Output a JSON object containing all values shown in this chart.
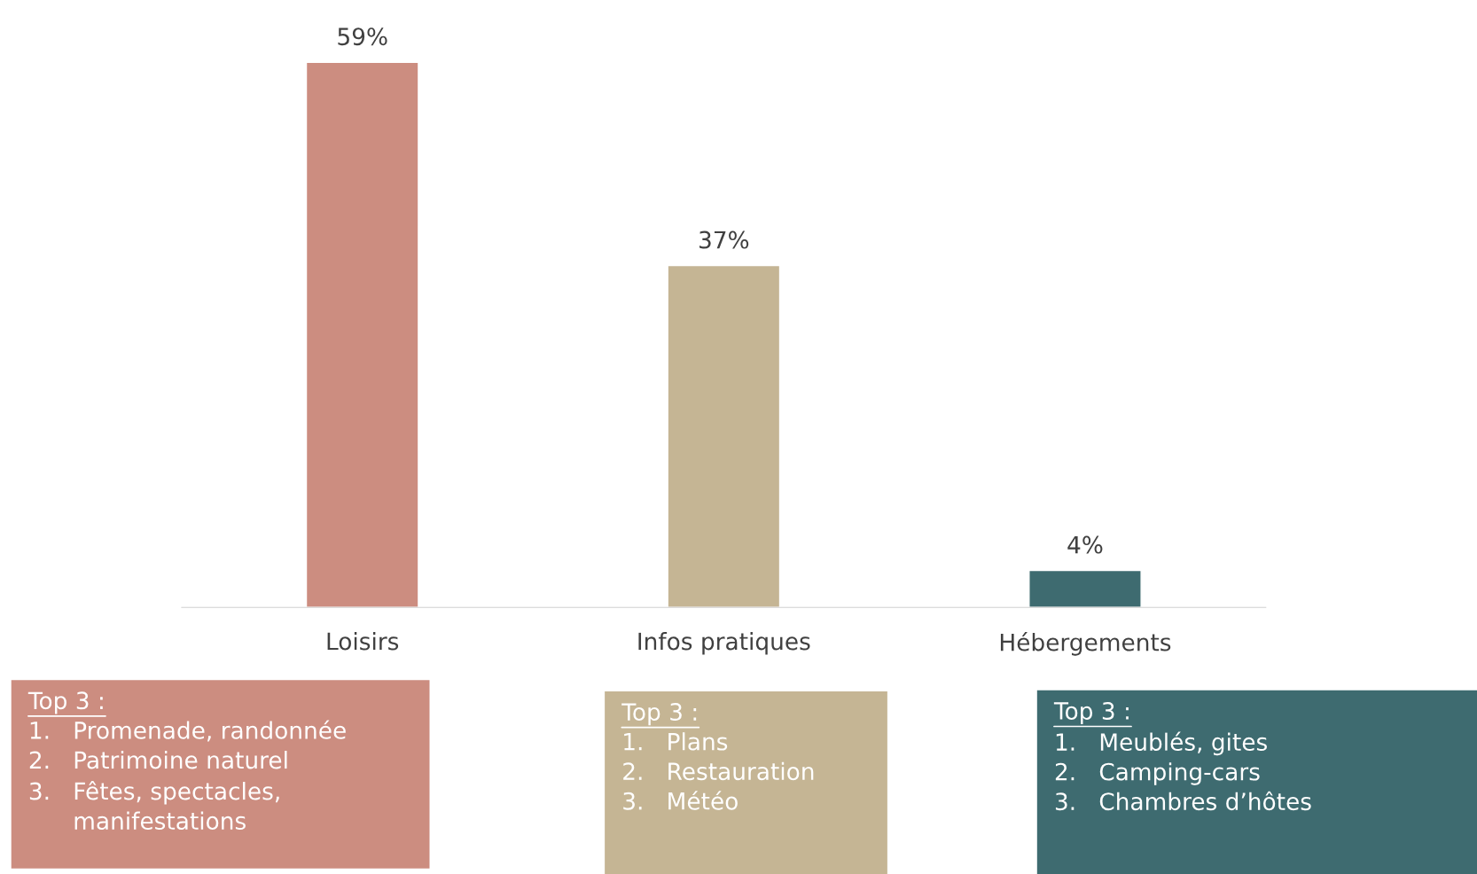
{
  "chart_data": {
    "type": "bar",
    "categories": [
      "Loisirs",
      "Infos pratiques",
      "Hébergements"
    ],
    "values": [
      59,
      37,
      4
    ],
    "colors": [
      "#cc8d80",
      "#c5b594",
      "#3e6b70"
    ],
    "value_labels": [
      "59%",
      "37%",
      "4%"
    ],
    "tick_labels": "x",
    "grid": false,
    "legend": false,
    "annotations": [
      "Top 3 :\n1.   Promenade, randonnée\n2.   Patrimoine naturel\n3.   Fêtes, spectacles,\n      manifestations",
      "Top 3 :\n1.   Plans\n2.   Restauration\n3.   Météo",
      "Top 3 :\n1.   Meublés, gites\n2.   Camping-cars\n3.   Chambres d’hôtes"
    ]
  }
}
